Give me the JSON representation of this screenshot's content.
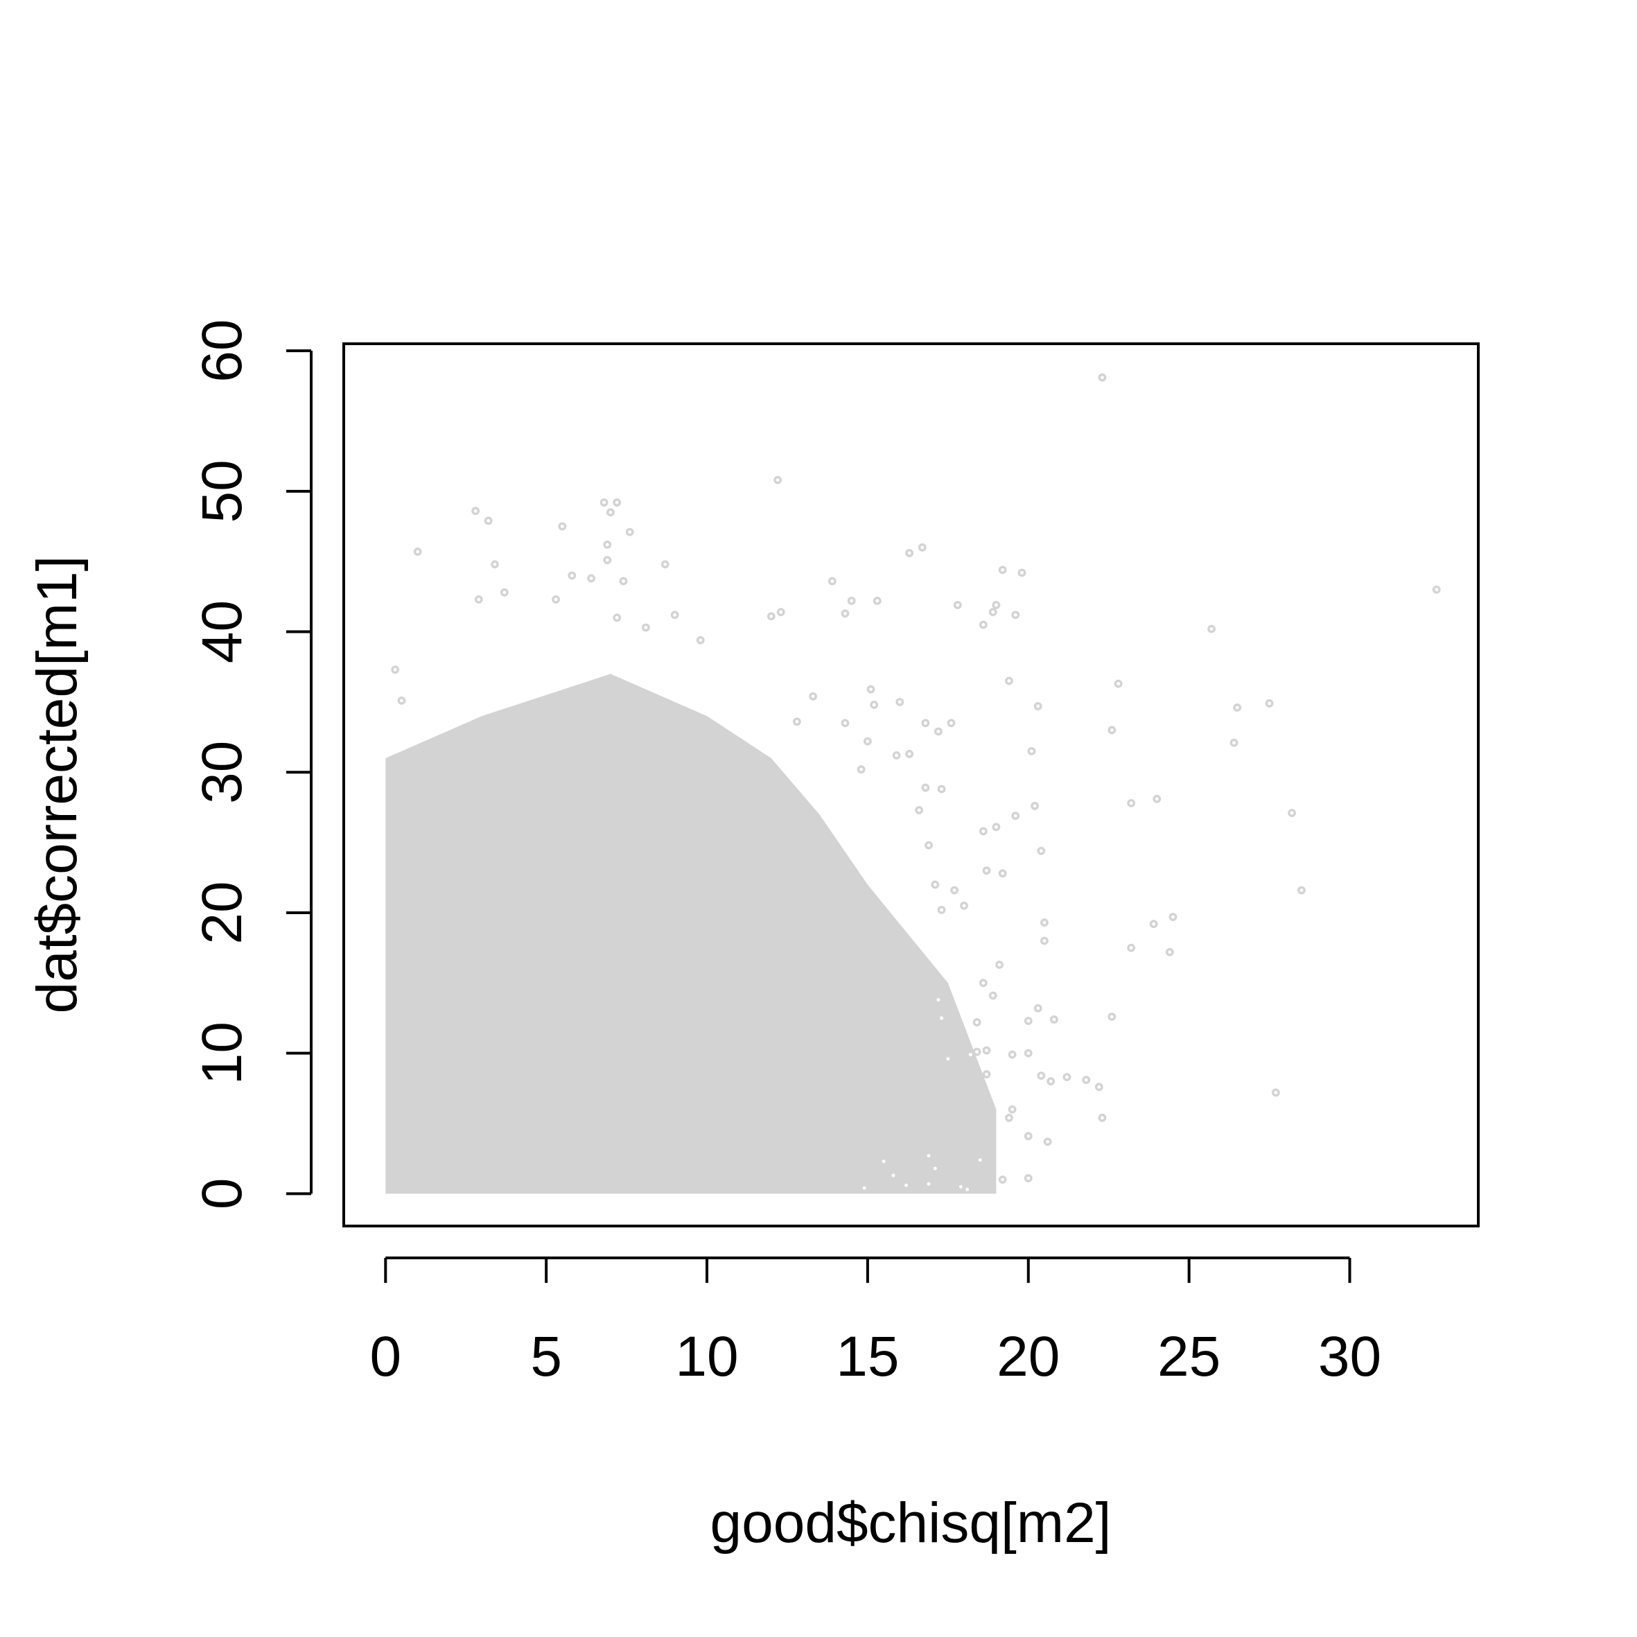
{
  "chart_data": {
    "type": "scatter",
    "title": "",
    "xlabel": "good$chisq[m2]",
    "ylabel": "dat$corrected[m1]",
    "xlim": [
      -1.3,
      34.0
    ],
    "ylim": [
      -2.3,
      60.5
    ],
    "x_ticks": [
      0,
      5,
      10,
      15,
      20,
      25,
      30
    ],
    "y_ticks": [
      0,
      10,
      20,
      30,
      40,
      50,
      60
    ],
    "x_tick_labels": [
      "0",
      "5",
      "10",
      "15",
      "20",
      "25",
      "30"
    ],
    "y_tick_labels": [
      "0",
      "10",
      "20",
      "30",
      "40",
      "50",
      "60"
    ],
    "grid": false,
    "point_color": "#d3d3d3",
    "dense_region": [
      [
        0,
        0
      ],
      [
        0,
        31
      ],
      [
        3,
        34
      ],
      [
        7,
        37
      ],
      [
        10,
        34
      ],
      [
        12,
        31
      ],
      [
        13.5,
        27
      ],
      [
        15,
        22
      ],
      [
        17.5,
        15
      ],
      [
        19,
        6
      ],
      [
        19,
        0
      ]
    ],
    "points": [
      [
        22.3,
        58.1
      ],
      [
        12.2,
        50.8
      ],
      [
        32.7,
        43.0
      ],
      [
        25.7,
        40.2
      ],
      [
        27.5,
        34.9
      ],
      [
        26.4,
        32.1
      ],
      [
        26.5,
        34.6
      ],
      [
        22.8,
        36.3
      ],
      [
        22.6,
        33.0
      ],
      [
        24.0,
        28.1
      ],
      [
        23.2,
        27.8
      ],
      [
        28.2,
        27.1
      ],
      [
        28.5,
        21.6
      ],
      [
        24.5,
        19.7
      ],
      [
        23.9,
        19.2
      ],
      [
        24.4,
        17.2
      ],
      [
        23.2,
        17.5
      ],
      [
        22.6,
        12.6
      ],
      [
        27.7,
        7.2
      ],
      [
        22.2,
        7.6
      ],
      [
        21.8,
        8.1
      ],
      [
        22.3,
        5.4
      ],
      [
        21.2,
        8.3
      ],
      [
        20.7,
        8.0
      ],
      [
        20.4,
        8.4
      ],
      [
        20.8,
        12.4
      ],
      [
        20.0,
        12.3
      ],
      [
        20.3,
        13.2
      ],
      [
        20.5,
        19.3
      ],
      [
        20.5,
        18.0
      ],
      [
        20.4,
        24.4
      ],
      [
        20.2,
        27.6
      ],
      [
        20.1,
        31.5
      ],
      [
        20.3,
        34.7
      ],
      [
        19.8,
        44.2
      ],
      [
        19.2,
        44.4
      ],
      [
        19.4,
        36.5
      ],
      [
        18.9,
        41.4
      ],
      [
        19.0,
        41.9
      ],
      [
        18.6,
        40.5
      ],
      [
        17.8,
        41.9
      ],
      [
        16.7,
        46.0
      ],
      [
        16.3,
        45.6
      ],
      [
        15.3,
        42.2
      ],
      [
        14.5,
        42.2
      ],
      [
        13.9,
        43.6
      ],
      [
        14.3,
        41.3
      ],
      [
        12.3,
        41.4
      ],
      [
        12.0,
        41.1
      ],
      [
        19.6,
        41.2
      ],
      [
        20.0,
        10.0
      ],
      [
        20.0,
        4.1
      ],
      [
        20.0,
        1.1
      ],
      [
        20.6,
        3.7
      ],
      [
        19.2,
        1.0
      ],
      [
        18.5,
        2.4
      ],
      [
        17.9,
        0.5
      ],
      [
        18.1,
        0.3
      ],
      [
        0.3,
        37.3
      ],
      [
        0.5,
        35.1
      ],
      [
        1.0,
        45.7
      ],
      [
        2.8,
        48.6
      ],
      [
        3.2,
        47.9
      ],
      [
        3.4,
        44.8
      ],
      [
        3.7,
        42.8
      ],
      [
        2.9,
        42.3
      ],
      [
        5.5,
        47.5
      ],
      [
        5.8,
        44.0
      ],
      [
        6.8,
        49.2
      ],
      [
        7.2,
        49.2
      ],
      [
        7.0,
        48.5
      ],
      [
        6.9,
        46.2
      ],
      [
        6.9,
        45.1
      ],
      [
        7.4,
        43.6
      ],
      [
        8.7,
        44.8
      ],
      [
        7.6,
        47.1
      ],
      [
        9.0,
        41.2
      ],
      [
        8.1,
        40.3
      ],
      [
        7.2,
        41.0
      ],
      [
        5.3,
        42.3
      ],
      [
        9.8,
        39.4
      ],
      [
        6.4,
        43.8
      ],
      [
        16.0,
        35.0
      ],
      [
        15.1,
        35.9
      ],
      [
        15.2,
        34.8
      ],
      [
        13.3,
        35.4
      ],
      [
        14.3,
        33.5
      ],
      [
        16.8,
        33.5
      ],
      [
        17.6,
        33.5
      ],
      [
        17.2,
        32.9
      ],
      [
        15.9,
        31.2
      ],
      [
        16.3,
        31.3
      ],
      [
        15.0,
        32.2
      ],
      [
        14.8,
        30.2
      ],
      [
        12.8,
        33.6
      ],
      [
        18.6,
        25.8
      ],
      [
        19.0,
        26.1
      ],
      [
        19.6,
        26.9
      ],
      [
        19.2,
        22.8
      ],
      [
        18.7,
        23.0
      ],
      [
        17.3,
        20.2
      ],
      [
        17.7,
        21.6
      ],
      [
        18.0,
        20.5
      ],
      [
        18.6,
        15.0
      ],
      [
        18.9,
        14.1
      ],
      [
        19.1,
        16.3
      ],
      [
        18.4,
        10.1
      ],
      [
        18.7,
        10.2
      ],
      [
        18.2,
        9.9
      ],
      [
        19.5,
        9.9
      ],
      [
        18.4,
        12.2
      ],
      [
        19.4,
        5.4
      ],
      [
        19.5,
        6.0
      ],
      [
        18.7,
        8.5
      ],
      [
        17.3,
        12.5
      ],
      [
        17.5,
        9.6
      ],
      [
        17.2,
        13.8
      ],
      [
        16.9,
        2.7
      ],
      [
        16.2,
        0.6
      ],
      [
        16.9,
        0.7
      ],
      [
        17.1,
        1.8
      ],
      [
        15.8,
        1.3
      ],
      [
        15.5,
        2.3
      ],
      [
        14.9,
        0.4
      ],
      [
        16.6,
        27.3
      ],
      [
        16.8,
        28.9
      ],
      [
        17.3,
        28.8
      ],
      [
        16.9,
        24.8
      ],
      [
        17.1,
        22.0
      ]
    ]
  }
}
